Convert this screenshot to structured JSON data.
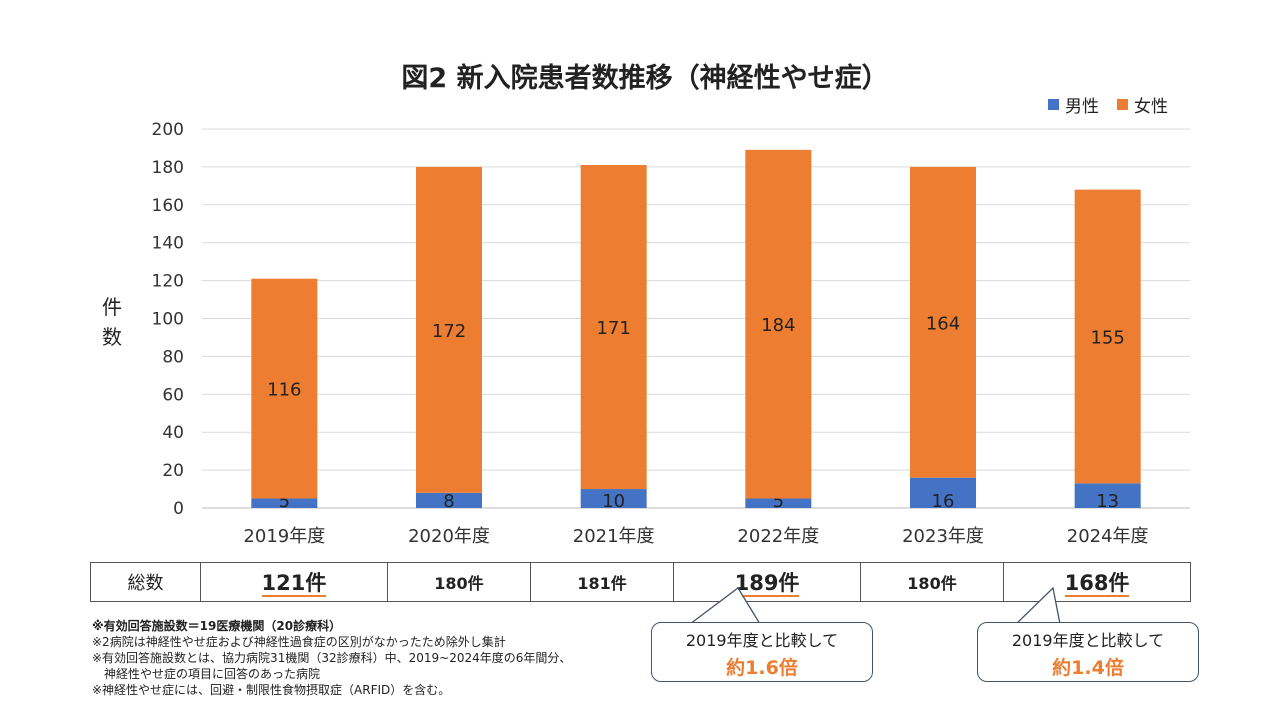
{
  "chart_data": {
    "type": "bar",
    "stacked": true,
    "title": "図2 新入院患者数推移（神経性やせ症）",
    "ylabel": "件数",
    "xlabel": "",
    "ylim": [
      0,
      200
    ],
    "yticks": [
      0,
      20,
      40,
      60,
      80,
      100,
      120,
      140,
      160,
      180,
      200
    ],
    "grid": true,
    "legend_position": "top-right",
    "categories": [
      "2019年度",
      "2020年度",
      "2021年度",
      "2022年度",
      "2023年度",
      "2024年度"
    ],
    "series": [
      {
        "name": "男性",
        "color": "#4472C4",
        "values": [
          5,
          8,
          10,
          5,
          16,
          13
        ]
      },
      {
        "name": "女性",
        "color": "#ED7D31",
        "values": [
          116,
          172,
          171,
          184,
          164,
          155
        ]
      }
    ]
  },
  "table": {
    "header": "総数",
    "totals": [
      "121件",
      "180件",
      "181件",
      "189件",
      "180件",
      "168件"
    ],
    "highlighted": [
      0,
      3,
      5
    ]
  },
  "notes": [
    "※有効回答施設数＝19医療機関（20診療科）",
    "※2病院は神経性やせ症および神経性過食症の区別がなかったため除外し集計",
    "※有効回答施設数とは、協力病院31機関（32診療科）中、2019~2024年度の6年間分、",
    "　神経性やせ症の項目に回答のあった病院",
    "※神経性やせ症には、回避・制限性食物摂取症（ARFID）を含む。"
  ],
  "callouts": [
    {
      "text": "2019年度と比較して",
      "ratio": "約1.6倍"
    },
    {
      "text": "2019年度と比較して",
      "ratio": "約1.4倍"
    }
  ]
}
